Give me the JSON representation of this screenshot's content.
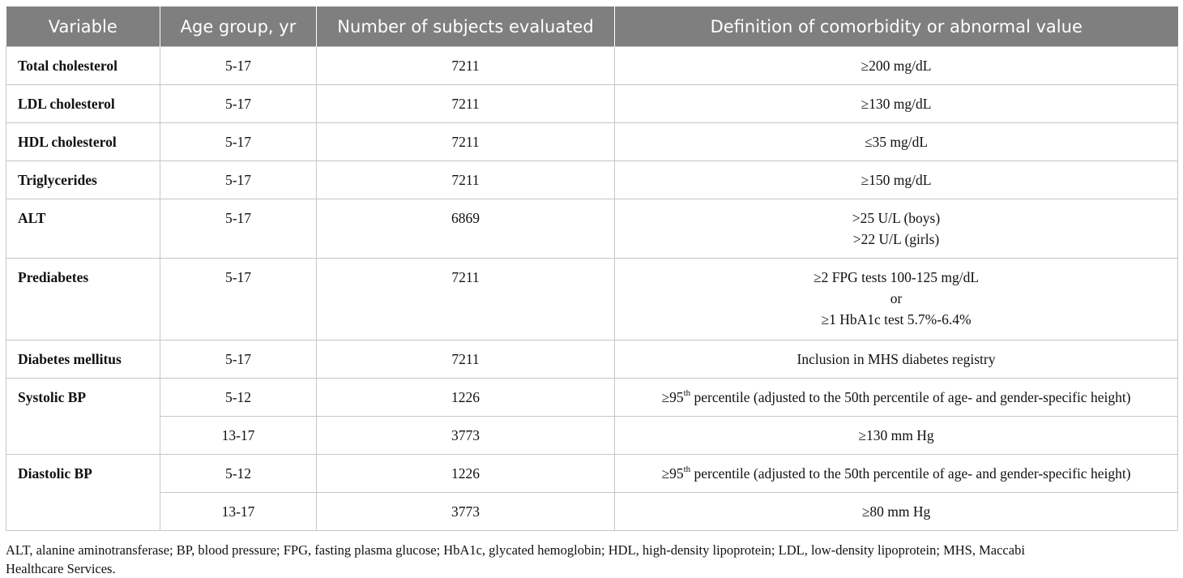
{
  "table": {
    "headers": [
      "Variable",
      "Age group, yr",
      "Number of subjects evaluated",
      "Definition of comorbidity or abnormal value"
    ],
    "rows": [
      {
        "variable": "Total cholesterol",
        "age": "5-17",
        "n": "7211",
        "def": "≥200 mg/dL"
      },
      {
        "variable": "LDL cholesterol",
        "age": "5-17",
        "n": "7211",
        "def": "≥130 mg/dL"
      },
      {
        "variable": "HDL cholesterol",
        "age": "5-17",
        "n": "7211",
        "def": "≤35 mg/dL"
      },
      {
        "variable": "Triglycerides",
        "age": "5-17",
        "n": "7211",
        "def": "≥150 mg/dL"
      },
      {
        "variable": "ALT",
        "age": "5-17",
        "n": "6869",
        "def_lines": [
          ">25 U/L (boys)",
          ">22 U/L (girls)"
        ]
      },
      {
        "variable": "Prediabetes",
        "age": "5-17",
        "n": "7211",
        "def_lines": [
          "≥2 FPG tests 100-125 mg/dL",
          "or",
          "≥1 HbA1c test 5.7%-6.4%"
        ]
      },
      {
        "variable": "Diabetes mellitus",
        "age": "5-17",
        "n": "7211",
        "def": "Inclusion in MHS diabetes registry"
      },
      {
        "variable": "Systolic BP",
        "age": "5-12",
        "n": "1226",
        "def_pre": "≥95",
        "def_sup": "th",
        "def_post": " percentile (adjusted to the 50th percentile of age- and gender-specific height)"
      },
      {
        "variable": "",
        "age": "13-17",
        "n": "3773",
        "def": "≥130 mm Hg"
      },
      {
        "variable": "Diastolic BP",
        "age": "5-12",
        "n": "1226",
        "def_pre": "≥95",
        "def_sup": "th",
        "def_post": " percentile (adjusted to the 50th percentile of age- and gender-specific height)"
      },
      {
        "variable": "",
        "age": "13-17",
        "n": "3773",
        "def": "≥80 mm Hg"
      }
    ]
  },
  "footnote": {
    "line1": "ALT, alanine aminotransferase; BP, blood pressure; FPG, fasting plasma glucose; HbA1c, glycated hemoglobin; HDL, high-density lipoprotein; LDL, low-density lipoprotein; MHS, Maccabi",
    "line2": "Healthcare Services."
  }
}
